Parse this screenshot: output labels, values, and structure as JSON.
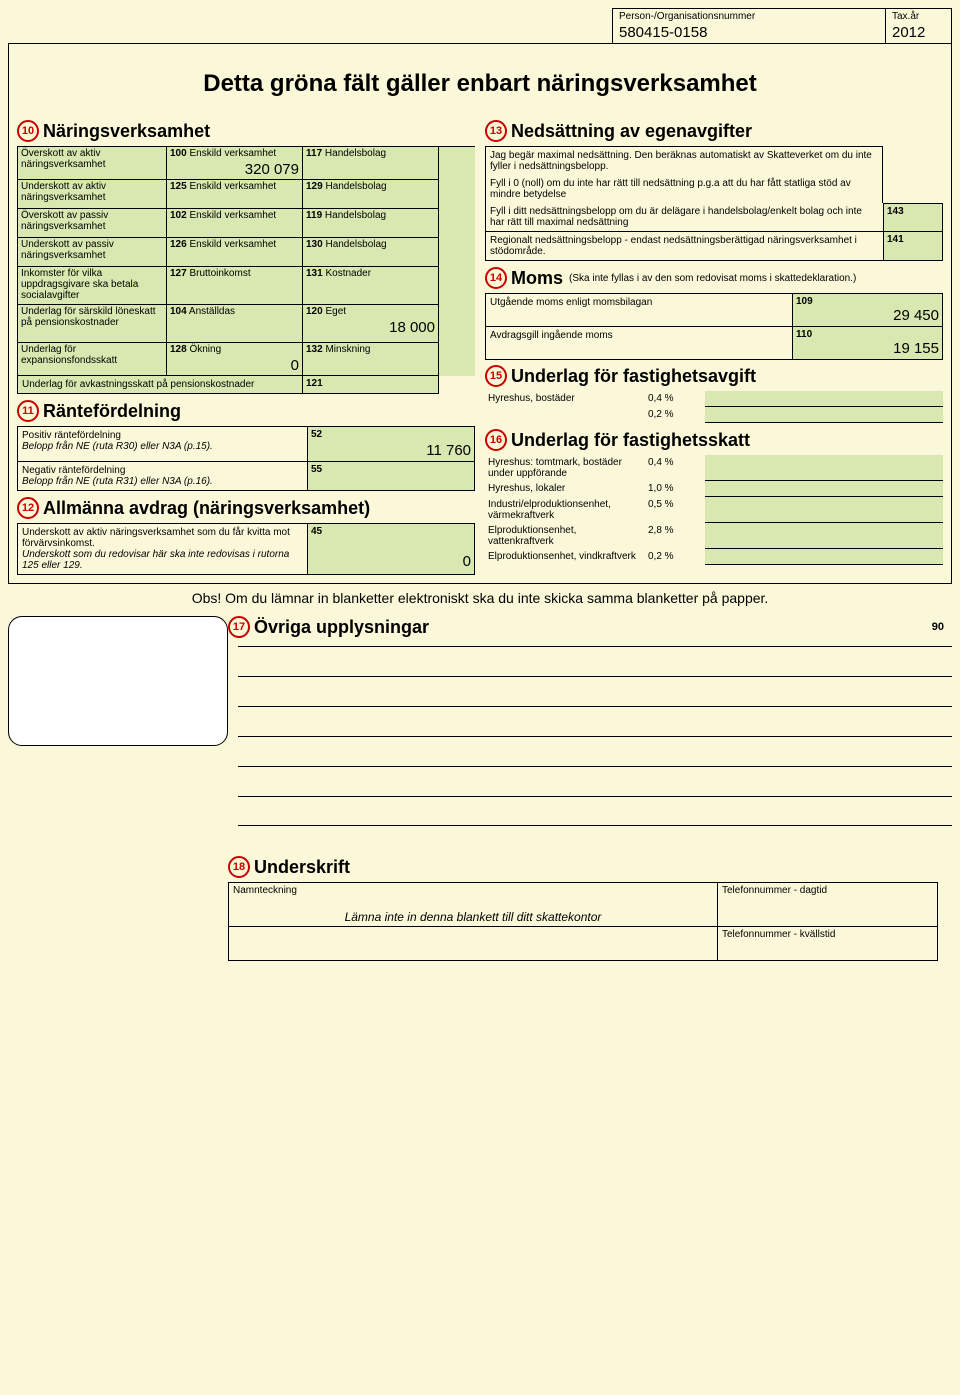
{
  "header": {
    "idLabel": "Person-/Organisationsnummer",
    "idValue": "580415-0158",
    "yearLabel": "Tax.år",
    "yearValue": "2012"
  },
  "title": "Detta gröna fält gäller enbart näringsverksamhet",
  "s10": {
    "num": "10",
    "title": "Näringsverksamhet",
    "rows": [
      {
        "label": "Överskott av aktiv näringsverksamhet",
        "c1": "100",
        "t1": "Enskild verksamhet",
        "v1": "320 079",
        "c2": "117",
        "t2": "Handelsbolag",
        "v2": ""
      },
      {
        "label": "Underskott av aktiv näringsverksamhet",
        "c1": "125",
        "t1": "Enskild verksamhet",
        "v1": "",
        "c2": "129",
        "t2": "Handelsbolag",
        "v2": ""
      },
      {
        "label": "Överskott av passiv näringsverksamhet",
        "c1": "102",
        "t1": "Enskild verksamhet",
        "v1": "",
        "c2": "119",
        "t2": "Handelsbolag",
        "v2": ""
      },
      {
        "label": "Underskott av passiv näringsverksamhet",
        "c1": "126",
        "t1": "Enskild verksamhet",
        "v1": "",
        "c2": "130",
        "t2": "Handelsbolag",
        "v2": ""
      },
      {
        "label": "Inkomster för vilka uppdragsgivare ska betala socialavgifter",
        "c1": "127",
        "t1": "Bruttoinkomst",
        "v1": "",
        "c2": "131",
        "t2": "Kostnader",
        "v2": ""
      },
      {
        "label": "Underlag för särskild löneskatt på pensionskostnader",
        "c1": "104",
        "t1": "Anställdas",
        "v1": "",
        "c2": "120",
        "t2": "Eget",
        "v2": "18 000"
      },
      {
        "label": "Underlag för expansionsfondsskatt",
        "c1": "128",
        "t1": "Ökning",
        "v1": "0",
        "c2": "132",
        "t2": "Minskning",
        "v2": ""
      }
    ],
    "avkast": {
      "label": "Underlag för avkastningsskatt på pensionskostnader",
      "code": "121"
    }
  },
  "s11": {
    "num": "11",
    "title": "Räntefördelning",
    "pos": {
      "label": "Positiv räntefördelning",
      "sub": "Belopp från NE (ruta R30) eller N3A (p.15).",
      "code": "52",
      "val": "11 760"
    },
    "neg": {
      "label": "Negativ räntefördelning",
      "sub": "Belopp från NE (ruta R31) eller N3A (p.16).",
      "code": "55",
      "val": ""
    }
  },
  "s12": {
    "num": "12",
    "title": "Allmänna avdrag (näringsverksamhet)",
    "text": "Underskott av aktiv näringsverksamhet som du får kvitta mot förvärvsinkomst.",
    "text2": "Underskott som du redovisar här ska inte redovisas i rutorna 125 eller 129.",
    "code": "45",
    "val": "0"
  },
  "s13": {
    "num": "13",
    "title": "Nedsättning av egenavgifter",
    "p1": "Jag begär maximal nedsättning. Den beräknas automatiskt av Skatteverket om du inte fyller i nedsättningsbelopp.",
    "p2": "Fyll i 0 (noll) om du inte har rätt till nedsättning p.g.a att du har fått statliga stöd av mindre betydelse",
    "p3": "Fyll i ditt nedsättningsbelopp om du är delägare i handelsbolag/enkelt bolag och inte har rätt till maximal nedsättning",
    "p4": "Regionalt nedsättningsbelopp - endast nedsättningsberättigad näringsverksamhet i stödområde.",
    "c143": "143",
    "c141": "141"
  },
  "s14": {
    "num": "14",
    "title": "Moms",
    "sub": "(Ska inte fyllas i av den som redovisat moms i skattedeklaration.)",
    "r1": {
      "label": "Utgående moms enligt momsbilagan",
      "code": "109",
      "val": "29 450"
    },
    "r2": {
      "label": "Avdragsgill ingående moms",
      "code": "110",
      "val": "19 155"
    }
  },
  "s15": {
    "num": "15",
    "title": "Underlag för fastighetsavgift",
    "rows": [
      {
        "label": "Hyreshus, bostäder",
        "p1": "0,4 %",
        "p2": "0,2 %"
      }
    ]
  },
  "s16": {
    "num": "16",
    "title": "Underlag för fastighetsskatt",
    "rows": [
      {
        "label": "Hyreshus: tomtmark, bostäder under uppförande",
        "pct": "0,4 %"
      },
      {
        "label": "Hyreshus, lokaler",
        "pct": "1,0 %"
      },
      {
        "label": "Industri/elproduktionsenhet, värmekraftverk",
        "pct": "0,5 %"
      },
      {
        "label": "Elproduktionsenhet, vattenkraftverk",
        "pct": "2,8 %"
      },
      {
        "label": "Elproduktionsenhet, vindkraftverk",
        "pct": "0,2 %"
      }
    ]
  },
  "note": "Obs! Om du lämnar in blanketter elektroniskt ska du inte skicka samma blanketter på papper.",
  "s17": {
    "num": "17",
    "title": "Övriga upplysningar",
    "code": "90"
  },
  "s18": {
    "num": "18",
    "title": "Underskrift",
    "sign": "Namnteckning",
    "signNote": "Lämna inte in denna blankett till ditt skattekontor",
    "tel1": "Telefonnummer - dagtid",
    "tel2": "Telefonnummer - kvällstid"
  }
}
